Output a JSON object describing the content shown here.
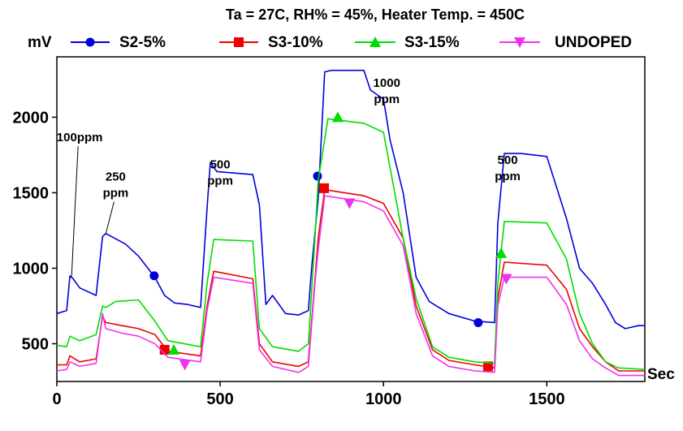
{
  "chart_data": {
    "type": "line",
    "title": "Ta = 27C, RH% = 45%, Heater Temp. = 450C",
    "xlabel": "Sec",
    "ylabel": "mV",
    "xlim": [
      0,
      1800
    ],
    "ylim": [
      250,
      2400
    ],
    "xticks": [
      0,
      500,
      1000,
      1500
    ],
    "yticks": [
      500,
      1000,
      1500,
      2000
    ],
    "legend_position": "top",
    "annotations": [
      {
        "lines": [
          "100ppm"
        ],
        "x": 70,
        "y": 1840,
        "leader_to": [
          45,
          940
        ]
      },
      {
        "lines": [
          "250",
          "ppm"
        ],
        "x": 180,
        "y": 1580,
        "leader_to": [
          150,
          1230
        ]
      },
      {
        "lines": [
          "500",
          "ppm"
        ],
        "x": 500,
        "y": 1660
      },
      {
        "lines": [
          "1000",
          "ppm"
        ],
        "x": 1010,
        "y": 2200
      },
      {
        "lines": [
          "500",
          "ppm"
        ],
        "x": 1380,
        "y": 1690
      }
    ],
    "series": [
      {
        "name": "S2-5%",
        "color": "#0000dd",
        "marker": "circle",
        "marker_at": [
          [
            298,
            950
          ],
          [
            798,
            1610
          ],
          [
            1290,
            640
          ]
        ],
        "points": [
          [
            0,
            700
          ],
          [
            30,
            720
          ],
          [
            40,
            950
          ],
          [
            50,
            930
          ],
          [
            70,
            870
          ],
          [
            120,
            820
          ],
          [
            140,
            1210
          ],
          [
            150,
            1230
          ],
          [
            210,
            1160
          ],
          [
            250,
            1080
          ],
          [
            300,
            940
          ],
          [
            330,
            820
          ],
          [
            360,
            770
          ],
          [
            400,
            760
          ],
          [
            440,
            740
          ],
          [
            460,
            1400
          ],
          [
            470,
            1700
          ],
          [
            490,
            1640
          ],
          [
            600,
            1620
          ],
          [
            620,
            1420
          ],
          [
            640,
            760
          ],
          [
            660,
            820
          ],
          [
            700,
            700
          ],
          [
            740,
            690
          ],
          [
            770,
            720
          ],
          [
            780,
            1000
          ],
          [
            800,
            1460
          ],
          [
            820,
            2300
          ],
          [
            840,
            2310
          ],
          [
            940,
            2310
          ],
          [
            960,
            2180
          ],
          [
            1000,
            2120
          ],
          [
            1020,
            1850
          ],
          [
            1060,
            1500
          ],
          [
            1100,
            940
          ],
          [
            1140,
            780
          ],
          [
            1200,
            700
          ],
          [
            1280,
            650
          ],
          [
            1340,
            640
          ],
          [
            1350,
            1300
          ],
          [
            1370,
            1760
          ],
          [
            1420,
            1760
          ],
          [
            1500,
            1740
          ],
          [
            1560,
            1330
          ],
          [
            1600,
            1000
          ],
          [
            1640,
            900
          ],
          [
            1680,
            760
          ],
          [
            1710,
            640
          ],
          [
            1740,
            600
          ],
          [
            1780,
            620
          ],
          [
            1800,
            620
          ]
        ]
      },
      {
        "name": "S3-10%",
        "color": "#ee0000",
        "marker": "square",
        "marker_at": [
          [
            330,
            460
          ],
          [
            818,
            1530
          ],
          [
            1320,
            350
          ]
        ],
        "points": [
          [
            0,
            360
          ],
          [
            30,
            360
          ],
          [
            40,
            420
          ],
          [
            70,
            380
          ],
          [
            120,
            400
          ],
          [
            140,
            680
          ],
          [
            150,
            640
          ],
          [
            200,
            620
          ],
          [
            250,
            600
          ],
          [
            300,
            560
          ],
          [
            340,
            450
          ],
          [
            440,
            420
          ],
          [
            460,
            750
          ],
          [
            480,
            980
          ],
          [
            600,
            930
          ],
          [
            620,
            500
          ],
          [
            660,
            380
          ],
          [
            740,
            350
          ],
          [
            770,
            380
          ],
          [
            790,
            920
          ],
          [
            800,
            1200
          ],
          [
            820,
            1520
          ],
          [
            940,
            1480
          ],
          [
            1000,
            1430
          ],
          [
            1060,
            1200
          ],
          [
            1100,
            750
          ],
          [
            1150,
            460
          ],
          [
            1200,
            390
          ],
          [
            1280,
            360
          ],
          [
            1340,
            340
          ],
          [
            1350,
            800
          ],
          [
            1370,
            1040
          ],
          [
            1500,
            1020
          ],
          [
            1560,
            860
          ],
          [
            1600,
            600
          ],
          [
            1640,
            480
          ],
          [
            1680,
            380
          ],
          [
            1720,
            320
          ],
          [
            1800,
            320
          ]
        ]
      },
      {
        "name": "S3-15%",
        "color": "#00dd00",
        "marker": "triangle-up",
        "marker_at": [
          [
            358,
            460
          ],
          [
            860,
            2000
          ],
          [
            1360,
            1100
          ]
        ],
        "points": [
          [
            0,
            490
          ],
          [
            30,
            480
          ],
          [
            40,
            550
          ],
          [
            70,
            520
          ],
          [
            120,
            560
          ],
          [
            140,
            750
          ],
          [
            150,
            740
          ],
          [
            180,
            780
          ],
          [
            250,
            790
          ],
          [
            300,
            650
          ],
          [
            340,
            520
          ],
          [
            440,
            480
          ],
          [
            460,
            900
          ],
          [
            480,
            1190
          ],
          [
            600,
            1180
          ],
          [
            620,
            600
          ],
          [
            660,
            480
          ],
          [
            740,
            450
          ],
          [
            770,
            500
          ],
          [
            790,
            1200
          ],
          [
            800,
            1580
          ],
          [
            830,
            1990
          ],
          [
            940,
            1960
          ],
          [
            1000,
            1900
          ],
          [
            1060,
            1200
          ],
          [
            1100,
            800
          ],
          [
            1150,
            480
          ],
          [
            1200,
            410
          ],
          [
            1280,
            380
          ],
          [
            1340,
            370
          ],
          [
            1350,
            900
          ],
          [
            1370,
            1310
          ],
          [
            1500,
            1300
          ],
          [
            1560,
            1060
          ],
          [
            1600,
            700
          ],
          [
            1640,
            500
          ],
          [
            1680,
            380
          ],
          [
            1720,
            340
          ],
          [
            1800,
            330
          ]
        ]
      },
      {
        "name": "UNDOPED",
        "color": "#ee33ee",
        "marker": "triangle-down",
        "marker_at": [
          [
            392,
            360
          ],
          [
            896,
            1430
          ],
          [
            1376,
            930
          ]
        ],
        "points": [
          [
            0,
            320
          ],
          [
            30,
            330
          ],
          [
            40,
            380
          ],
          [
            70,
            350
          ],
          [
            120,
            370
          ],
          [
            140,
            700
          ],
          [
            150,
            600
          ],
          [
            200,
            570
          ],
          [
            250,
            550
          ],
          [
            300,
            500
          ],
          [
            340,
            410
          ],
          [
            440,
            380
          ],
          [
            460,
            720
          ],
          [
            480,
            940
          ],
          [
            600,
            900
          ],
          [
            620,
            460
          ],
          [
            660,
            350
          ],
          [
            740,
            310
          ],
          [
            770,
            350
          ],
          [
            790,
            900
          ],
          [
            800,
            1120
          ],
          [
            820,
            1480
          ],
          [
            940,
            1440
          ],
          [
            1000,
            1380
          ],
          [
            1060,
            1150
          ],
          [
            1100,
            700
          ],
          [
            1150,
            420
          ],
          [
            1200,
            350
          ],
          [
            1280,
            320
          ],
          [
            1340,
            310
          ],
          [
            1350,
            750
          ],
          [
            1370,
            940
          ],
          [
            1500,
            940
          ],
          [
            1560,
            760
          ],
          [
            1600,
            520
          ],
          [
            1640,
            400
          ],
          [
            1680,
            340
          ],
          [
            1720,
            290
          ],
          [
            1800,
            290
          ]
        ]
      }
    ]
  }
}
